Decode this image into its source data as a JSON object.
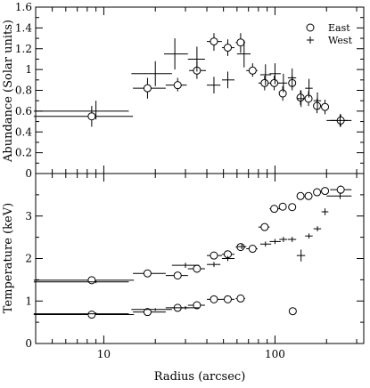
{
  "chart_data": [
    {
      "type": "scatter",
      "xscale": "log",
      "xlim": [
        4,
        330
      ],
      "ylim": [
        0,
        1.6
      ],
      "ylabel": "Abundance (Solar units)",
      "yticks": [
        "0",
        "0.2",
        "0.4",
        "0.6",
        "0.8",
        "1",
        "1.2",
        "1.4",
        "1.6"
      ],
      "ytick_values": [
        0,
        0.2,
        0.4,
        0.6,
        0.8,
        1.0,
        1.2,
        1.4,
        1.6
      ],
      "legend_position": "top-right",
      "series": [
        {
          "name": "East",
          "marker": "open-circle",
          "points": [
            {
              "x": 8.5,
              "y": 0.55,
              "xlo": 3.9,
              "xhi": 14.8,
              "ylo": 0.45,
              "yhi": 0.65
            },
            {
              "x": 18,
              "y": 0.82,
              "xlo": 14.8,
              "xhi": 23,
              "ylo": 0.72,
              "yhi": 0.92
            },
            {
              "x": 27,
              "y": 0.85,
              "xlo": 23,
              "xhi": 30.5,
              "ylo": 0.79,
              "yhi": 0.92
            },
            {
              "x": 35,
              "y": 0.99,
              "xlo": 31.5,
              "xhi": 39.5,
              "ylo": 0.91,
              "yhi": 1.08
            },
            {
              "x": 44,
              "y": 1.27,
              "xlo": 40,
              "xhi": 49,
              "ylo": 1.18,
              "yhi": 1.35
            },
            {
              "x": 53,
              "y": 1.21,
              "xlo": 49,
              "xhi": 58,
              "ylo": 1.13,
              "yhi": 1.29
            },
            {
              "x": 63,
              "y": 1.26,
              "xlo": 59,
              "xhi": 67,
              "ylo": 1.16,
              "yhi": 1.35
            },
            {
              "x": 74,
              "y": 0.99,
              "xlo": 68,
              "xhi": 79,
              "ylo": 0.93,
              "yhi": 1.06
            },
            {
              "x": 87,
              "y": 0.87,
              "xlo": 80,
              "xhi": 93,
              "ylo": 0.8,
              "yhi": 0.94
            },
            {
              "x": 99,
              "y": 0.87,
              "xlo": 93,
              "xhi": 107,
              "ylo": 0.8,
              "yhi": 0.94
            },
            {
              "x": 111,
              "y": 0.77,
              "xlo": 106,
              "xhi": 117,
              "ylo": 0.7,
              "yhi": 0.84
            },
            {
              "x": 126,
              "y": 0.87,
              "xlo": 120,
              "xhi": 132,
              "ylo": 0.8,
              "yhi": 0.94
            },
            {
              "x": 141,
              "y": 0.73,
              "xlo": 134,
              "xhi": 148,
              "ylo": 0.66,
              "yhi": 0.8
            },
            {
              "x": 157,
              "y": 0.72,
              "xlo": 150,
              "xhi": 165,
              "ylo": 0.65,
              "yhi": 0.79
            },
            {
              "x": 176,
              "y": 0.65,
              "xlo": 168,
              "xhi": 185,
              "ylo": 0.58,
              "yhi": 0.72
            },
            {
              "x": 196,
              "y": 0.64,
              "xlo": 187,
              "xhi": 205,
              "ylo": 0.57,
              "yhi": 0.71
            },
            {
              "x": 242,
              "y": 0.51,
              "xlo": 210,
              "xhi": 265,
              "ylo": 0.45,
              "yhi": 0.57
            }
          ]
        },
        {
          "name": "West",
          "marker": "plus",
          "points": [
            {
              "x": 9,
              "y": 0.6,
              "xlo": 3.9,
              "xhi": 14,
              "ylo": 0.52,
              "yhi": 0.7
            },
            {
              "x": 20,
              "y": 0.96,
              "xlo": 14.5,
              "xhi": 25,
              "ylo": 0.84,
              "yhi": 1.08
            },
            {
              "x": 26,
              "y": 1.15,
              "xlo": 22.5,
              "xhi": 31,
              "ylo": 1.0,
              "yhi": 1.3
            },
            {
              "x": 35,
              "y": 1.1,
              "xlo": 31,
              "xhi": 39,
              "ylo": 0.98,
              "yhi": 1.22
            },
            {
              "x": 44,
              "y": 0.85,
              "xlo": 40,
              "xhi": 48,
              "ylo": 0.77,
              "yhi": 0.93
            },
            {
              "x": 53,
              "y": 0.9,
              "xlo": 49,
              "xhi": 58,
              "ylo": 0.82,
              "yhi": 0.98
            },
            {
              "x": 66,
              "y": 1.15,
              "xlo": 60,
              "xhi": 72,
              "ylo": 1.02,
              "yhi": 1.28
            },
            {
              "x": 88,
              "y": 0.95,
              "xlo": 82,
              "xhi": 95,
              "ylo": 0.85,
              "yhi": 1.05
            },
            {
              "x": 100,
              "y": 0.96,
              "xlo": 93,
              "xhi": 108,
              "ylo": 0.86,
              "yhi": 1.06
            },
            {
              "x": 112,
              "y": 0.87,
              "xlo": 106,
              "xhi": 118,
              "ylo": 0.78,
              "yhi": 0.96
            },
            {
              "x": 126,
              "y": 0.92,
              "xlo": 119,
              "xhi": 133,
              "ylo": 0.83,
              "yhi": 1.01
            },
            {
              "x": 142,
              "y": 0.72,
              "xlo": 134,
              "xhi": 150,
              "ylo": 0.64,
              "yhi": 0.8
            },
            {
              "x": 158,
              "y": 0.82,
              "xlo": 150,
              "xhi": 166,
              "ylo": 0.73,
              "yhi": 0.91
            },
            {
              "x": 177,
              "y": 0.7,
              "xlo": 168,
              "xhi": 186,
              "ylo": 0.62,
              "yhi": 0.78
            },
            {
              "x": 240,
              "y": 0.51,
              "xlo": 200,
              "xhi": 280,
              "ylo": 0.45,
              "yhi": 0.57
            }
          ]
        }
      ]
    },
    {
      "type": "scatter",
      "xscale": "log",
      "xlim": [
        4,
        330
      ],
      "ylim": [
        0,
        4
      ],
      "xlabel": "Radius (arcsec)",
      "ylabel": "Temperature (keV)",
      "xticks": [
        "10",
        "100"
      ],
      "xtick_values": [
        10,
        100
      ],
      "yticks": [
        "0",
        "1",
        "2",
        "3"
      ],
      "ytick_values": [
        0,
        1,
        2,
        3
      ],
      "series": [
        {
          "name": "East",
          "marker": "open-circle",
          "points": [
            {
              "x": 8.5,
              "y": 1.49,
              "xlo": 3.9,
              "xhi": 15,
              "ylo": 1.45,
              "yhi": 1.53
            },
            {
              "x": 8.5,
              "y": 0.68,
              "xlo": 3.9,
              "xhi": 15,
              "ylo": 0.64,
              "yhi": 0.72
            },
            {
              "x": 18,
              "y": 1.65,
              "xlo": 14.8,
              "xhi": 23,
              "ylo": 1.6,
              "yhi": 1.7
            },
            {
              "x": 18,
              "y": 0.74,
              "xlo": 14.8,
              "xhi": 23,
              "ylo": 0.7,
              "yhi": 0.78
            },
            {
              "x": 27,
              "y": 1.6,
              "xlo": 23,
              "xhi": 31,
              "ylo": 1.53,
              "yhi": 1.67
            },
            {
              "x": 27,
              "y": 0.84,
              "xlo": 23,
              "xhi": 31,
              "ylo": 0.8,
              "yhi": 0.88
            },
            {
              "x": 35,
              "y": 1.76,
              "xlo": 31,
              "xhi": 39,
              "ylo": 1.69,
              "yhi": 1.83
            },
            {
              "x": 35,
              "y": 0.9,
              "xlo": 31,
              "xhi": 39,
              "ylo": 0.86,
              "yhi": 0.94
            },
            {
              "x": 44,
              "y": 2.07,
              "xlo": 40,
              "xhi": 49,
              "ylo": 2.0,
              "yhi": 2.14
            },
            {
              "x": 44,
              "y": 1.04,
              "xlo": 40,
              "xhi": 49,
              "ylo": 1.0,
              "yhi": 1.08
            },
            {
              "x": 53,
              "y": 2.1,
              "xlo": 49,
              "xhi": 58,
              "ylo": 2.03,
              "yhi": 2.17
            },
            {
              "x": 53,
              "y": 1.04,
              "xlo": 49,
              "xhi": 58,
              "ylo": 1.0,
              "yhi": 1.08
            },
            {
              "x": 63,
              "y": 2.27,
              "xlo": 59,
              "xhi": 67,
              "ylo": 2.2,
              "yhi": 2.34
            },
            {
              "x": 63,
              "y": 1.06,
              "xlo": 59,
              "xhi": 67,
              "ylo": 1.02,
              "yhi": 1.1
            },
            {
              "x": 74,
              "y": 2.23,
              "xlo": 68,
              "xhi": 79,
              "ylo": 2.16,
              "yhi": 2.3
            },
            {
              "x": 87,
              "y": 2.74,
              "xlo": 80,
              "xhi": 93,
              "ylo": 2.67,
              "yhi": 2.81
            },
            {
              "x": 99,
              "y": 3.17,
              "xlo": 93,
              "xhi": 107,
              "ylo": 3.09,
              "yhi": 3.25
            },
            {
              "x": 111,
              "y": 3.22,
              "xlo": 106,
              "xhi": 117,
              "ylo": 3.14,
              "yhi": 3.3
            },
            {
              "x": 126,
              "y": 3.21,
              "xlo": 120,
              "xhi": 132,
              "ylo": 3.13,
              "yhi": 3.29
            },
            {
              "x": 127,
              "y": 0.76,
              "xlo": 123,
              "xhi": 131,
              "ylo": 0.72,
              "yhi": 0.8
            },
            {
              "x": 141,
              "y": 3.47,
              "xlo": 134,
              "xhi": 148,
              "ylo": 3.38,
              "yhi": 3.56
            },
            {
              "x": 157,
              "y": 3.47,
              "xlo": 150,
              "xhi": 165,
              "ylo": 3.38,
              "yhi": 3.56
            },
            {
              "x": 176,
              "y": 3.56,
              "xlo": 168,
              "xhi": 185,
              "ylo": 3.47,
              "yhi": 3.65
            },
            {
              "x": 196,
              "y": 3.59,
              "xlo": 187,
              "xhi": 205,
              "ylo": 3.5,
              "yhi": 3.68
            },
            {
              "x": 242,
              "y": 3.62,
              "xlo": 210,
              "xhi": 280,
              "ylo": 3.52,
              "yhi": 3.72
            }
          ]
        },
        {
          "name": "West",
          "marker": "plus",
          "points": [
            {
              "x": 9,
              "y": 1.45,
              "xlo": 3.9,
              "xhi": 14,
              "ylo": 1.42,
              "yhi": 1.48
            },
            {
              "x": 9,
              "y": 0.7,
              "xlo": 3.9,
              "xhi": 14,
              "ylo": 0.67,
              "yhi": 0.73
            },
            {
              "x": 20,
              "y": 0.8,
              "xlo": 14.5,
              "xhi": 25,
              "ylo": 0.77,
              "yhi": 0.83
            },
            {
              "x": 30,
              "y": 1.84,
              "xlo": 25,
              "xhi": 36,
              "ylo": 1.78,
              "yhi": 1.9
            },
            {
              "x": 30,
              "y": 0.84,
              "xlo": 25,
              "xhi": 36,
              "ylo": 0.8,
              "yhi": 0.88
            },
            {
              "x": 44,
              "y": 1.86,
              "xlo": 40,
              "xhi": 48,
              "ylo": 1.8,
              "yhi": 1.92
            },
            {
              "x": 53,
              "y": 2.0,
              "xlo": 49,
              "xhi": 58,
              "ylo": 1.94,
              "yhi": 2.06
            },
            {
              "x": 64,
              "y": 2.28,
              "xlo": 60,
              "xhi": 68,
              "ylo": 2.22,
              "yhi": 2.34
            },
            {
              "x": 88,
              "y": 2.34,
              "xlo": 82,
              "xhi": 95,
              "ylo": 2.28,
              "yhi": 2.4
            },
            {
              "x": 100,
              "y": 2.4,
              "xlo": 93,
              "xhi": 108,
              "ylo": 2.34,
              "yhi": 2.46
            },
            {
              "x": 112,
              "y": 2.45,
              "xlo": 106,
              "xhi": 118,
              "ylo": 2.39,
              "yhi": 2.51
            },
            {
              "x": 126,
              "y": 2.45,
              "xlo": 119,
              "xhi": 133,
              "ylo": 2.39,
              "yhi": 2.51
            },
            {
              "x": 142,
              "y": 2.07,
              "xlo": 134,
              "xhi": 150,
              "ylo": 1.93,
              "yhi": 2.21
            },
            {
              "x": 158,
              "y": 2.53,
              "xlo": 150,
              "xhi": 166,
              "ylo": 2.47,
              "yhi": 2.59
            },
            {
              "x": 177,
              "y": 2.7,
              "xlo": 168,
              "xhi": 186,
              "ylo": 2.64,
              "yhi": 2.76
            },
            {
              "x": 196,
              "y": 3.1,
              "xlo": 187,
              "xhi": 205,
              "ylo": 3.02,
              "yhi": 3.18
            },
            {
              "x": 240,
              "y": 3.47,
              "xlo": 200,
              "xhi": 280,
              "ylo": 3.4,
              "yhi": 3.54
            }
          ]
        }
      ]
    }
  ]
}
